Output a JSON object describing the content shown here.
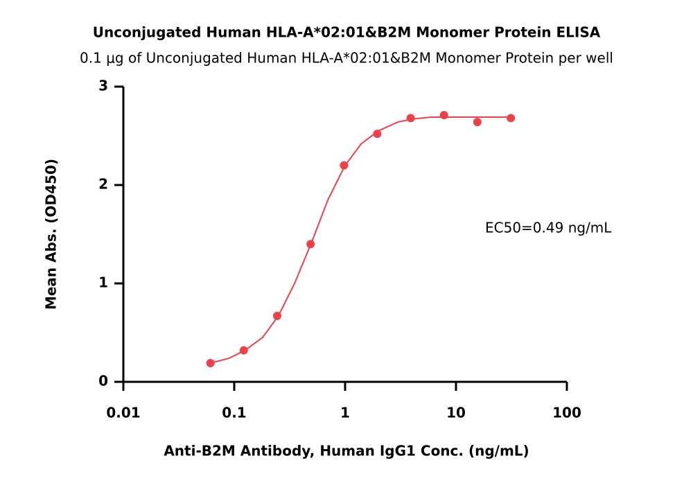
{
  "chart_data": {
    "type": "scatter",
    "title": "Unconjugated Human HLA-A*02:01&B2M Monomer Protein ELISA",
    "subtitle": "0.1 μg of Unconjugated Human HLA-A*02:01&B2M Monomer Protein per well",
    "x_label": "Anti-B2M Antibody, Human IgG1  Conc. (ng/mL)",
    "y_label": "Mean Abs. (OD450)",
    "annotation": "EC50=0.49 ng/mL",
    "xscale": "log",
    "xlim": [
      0.01,
      100
    ],
    "xticks": [
      0.01,
      0.1,
      1,
      10,
      100
    ],
    "ylim": [
      0,
      3
    ],
    "yticks": [
      0,
      1,
      2,
      3
    ],
    "series": [
      {
        "type": "scatter",
        "color": "#ee4149",
        "x": [
          0.061,
          0.122,
          0.244,
          0.488,
          0.977,
          1.95,
          3.9,
          7.8,
          15.6,
          31.25
        ],
        "values": [
          0.19,
          0.32,
          0.67,
          1.4,
          2.2,
          2.52,
          2.68,
          2.71,
          2.64,
          2.68
        ]
      },
      {
        "type": "line",
        "color": "#ee4149",
        "x": [
          0.061,
          0.09,
          0.125,
          0.18,
          0.25,
          0.35,
          0.5,
          0.7,
          1,
          1.4,
          2,
          3,
          4,
          6,
          10,
          31.25
        ],
        "values": [
          0.19,
          0.24,
          0.32,
          0.45,
          0.67,
          1.0,
          1.42,
          1.85,
          2.2,
          2.42,
          2.55,
          2.64,
          2.67,
          2.69,
          2.69,
          2.69
        ]
      }
    ]
  }
}
